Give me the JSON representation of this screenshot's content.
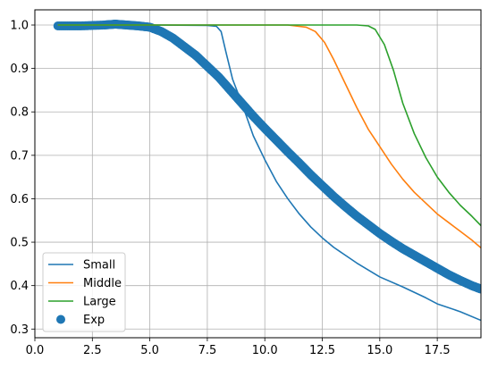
{
  "chart_data": {
    "type": "line",
    "title": "",
    "xlabel": "",
    "ylabel": "",
    "xlim": [
      0,
      19.4
    ],
    "ylim": [
      0.28,
      1.035
    ],
    "grid": true,
    "legend_placement": "lower-left",
    "x_ticks": [
      {
        "v": 0.0,
        "label": "0.0"
      },
      {
        "v": 2.5,
        "label": "2.5"
      },
      {
        "v": 5.0,
        "label": "5.0"
      },
      {
        "v": 7.5,
        "label": "7.5"
      },
      {
        "v": 10.0,
        "label": "10.0"
      },
      {
        "v": 12.5,
        "label": "12.5"
      },
      {
        "v": 15.0,
        "label": "15.0"
      },
      {
        "v": 17.5,
        "label": "17.5"
      }
    ],
    "y_ticks": [
      {
        "v": 0.3,
        "label": "0.3"
      },
      {
        "v": 0.4,
        "label": "0.4"
      },
      {
        "v": 0.5,
        "label": "0.5"
      },
      {
        "v": 0.6,
        "label": "0.6"
      },
      {
        "v": 0.7,
        "label": "0.7"
      },
      {
        "v": 0.8,
        "label": "0.8"
      },
      {
        "v": 0.9,
        "label": "0.9"
      },
      {
        "v": 1.0,
        "label": "1.0"
      }
    ],
    "series": [
      {
        "name": "Small",
        "kind": "line",
        "color": "#1f77b4",
        "x": [
          1.0,
          5.0,
          7.5,
          7.9,
          8.1,
          8.3,
          8.6,
          9.0,
          9.5,
          10.0,
          10.5,
          11.0,
          11.5,
          12.0,
          12.5,
          13.0,
          13.5,
          14.0,
          15.0,
          16.0,
          17.0,
          17.5,
          18.5,
          19.4
        ],
        "y": [
          1.0,
          1.0,
          0.999,
          0.997,
          0.985,
          0.94,
          0.875,
          0.82,
          0.745,
          0.69,
          0.64,
          0.6,
          0.565,
          0.535,
          0.51,
          0.488,
          0.47,
          0.452,
          0.42,
          0.397,
          0.372,
          0.358,
          0.34,
          0.32
        ]
      },
      {
        "name": "Middle",
        "kind": "line",
        "color": "#ff7f0e",
        "x": [
          1.0,
          11.0,
          11.8,
          12.2,
          12.6,
          13.0,
          13.5,
          14.0,
          14.5,
          15.0,
          15.5,
          16.0,
          16.5,
          17.0,
          17.5,
          18.0,
          18.5,
          19.0,
          19.4
        ],
        "y": [
          1.0,
          1.0,
          0.995,
          0.985,
          0.96,
          0.92,
          0.865,
          0.81,
          0.76,
          0.72,
          0.68,
          0.645,
          0.615,
          0.59,
          0.565,
          0.545,
          0.525,
          0.505,
          0.487
        ]
      },
      {
        "name": "Large",
        "kind": "line",
        "color": "#2ca02c",
        "x": [
          1.0,
          14.0,
          14.5,
          14.8,
          15.2,
          15.6,
          16.0,
          16.5,
          17.0,
          17.5,
          18.0,
          18.5,
          19.0,
          19.4
        ],
        "y": [
          1.0,
          1.0,
          0.998,
          0.99,
          0.955,
          0.895,
          0.82,
          0.75,
          0.695,
          0.65,
          0.615,
          0.585,
          0.56,
          0.538
        ]
      },
      {
        "name": "Exp",
        "kind": "scatter",
        "color": "#1f77b4",
        "x": [
          1.0,
          2.0,
          3.0,
          3.5,
          4.0,
          4.5,
          5.0,
          5.5,
          6.0,
          6.5,
          7.0,
          7.5,
          8.0,
          8.5,
          9.0,
          9.5,
          10.0,
          10.5,
          11.0,
          11.5,
          12.0,
          12.5,
          13.0,
          13.5,
          14.0,
          14.5,
          15.0,
          15.5,
          16.0,
          16.5,
          17.0,
          17.5,
          18.0,
          18.5,
          19.0,
          19.4
        ],
        "y": [
          0.998,
          0.998,
          1.0,
          1.002,
          1.0,
          0.998,
          0.995,
          0.985,
          0.97,
          0.95,
          0.93,
          0.905,
          0.88,
          0.85,
          0.82,
          0.79,
          0.762,
          0.735,
          0.708,
          0.682,
          0.655,
          0.63,
          0.605,
          0.582,
          0.56,
          0.54,
          0.52,
          0.502,
          0.485,
          0.47,
          0.455,
          0.44,
          0.425,
          0.412,
          0.4,
          0.392
        ]
      }
    ]
  }
}
